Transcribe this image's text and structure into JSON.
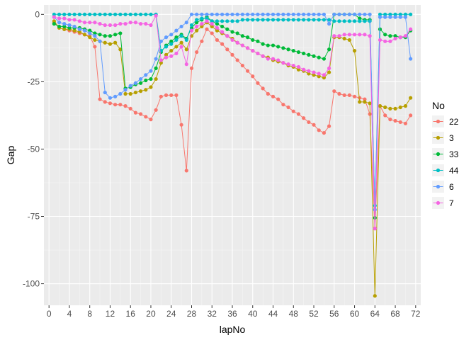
{
  "chart_data": {
    "type": "line",
    "xlabel": "lapNo",
    "ylabel": "Gap",
    "xlim": [
      -1,
      73
    ],
    "ylim": [
      -108,
      3.5
    ],
    "x_ticks": [
      0,
      4,
      8,
      12,
      16,
      20,
      24,
      28,
      32,
      36,
      40,
      44,
      48,
      52,
      56,
      60,
      64,
      68,
      72
    ],
    "x_tick_labels": [
      "0",
      "4",
      "8",
      "12",
      "16",
      "20",
      "24",
      "28",
      "32",
      "36",
      "40",
      "44",
      "48",
      "52",
      "56",
      "60",
      "64",
      "68",
      "72"
    ],
    "y_ticks": [
      0,
      -25,
      -50,
      -75,
      -100
    ],
    "y_tick_labels": [
      "0",
      "-25",
      "-50",
      "-75",
      "-100"
    ],
    "grid": true,
    "panel_background": "#ebebeb",
    "legend": {
      "title": "No",
      "position": "right"
    },
    "series": [
      {
        "name": "22",
        "color": "#f8766d",
        "x": [
          1,
          2,
          3,
          4,
          5,
          6,
          7,
          8,
          9,
          10,
          11,
          12,
          13,
          14,
          15,
          16,
          17,
          18,
          19,
          20,
          21,
          22,
          23,
          24,
          25,
          26,
          27,
          28,
          29,
          30,
          31,
          32,
          33,
          34,
          35,
          36,
          37,
          38,
          39,
          40,
          41,
          42,
          43,
          44,
          45,
          46,
          47,
          48,
          49,
          50,
          51,
          52,
          53,
          54,
          55,
          56,
          57,
          58,
          59,
          60,
          61,
          62,
          63,
          64,
          65,
          66,
          67,
          68,
          69,
          70,
          71
        ],
        "y": [
          -3,
          -5,
          -5.5,
          -6,
          -6.5,
          -7,
          -7.5,
          -8,
          -12,
          -31.5,
          -32.5,
          -33,
          -33.5,
          -33.5,
          -34,
          -35,
          -36.5,
          -37,
          -38,
          -39,
          -35.5,
          -30.5,
          -30,
          -30,
          -30,
          -41,
          -58,
          -20,
          -14,
          -10,
          -5.5,
          -7,
          -9.5,
          -11,
          -13,
          -15,
          -17,
          -19,
          -21,
          -23,
          -25.5,
          -27.5,
          -29.5,
          -30.5,
          -31.5,
          -33.5,
          -34.5,
          -36,
          -37,
          -38.5,
          -40,
          -41,
          -43,
          -44,
          -41.5,
          -28.5,
          -29.5,
          -30,
          -30,
          -30.5,
          -31,
          -31.5,
          -37,
          -79.5,
          -34,
          -37.5,
          -39,
          -39.5,
          -40,
          -40.5,
          -37.5
        ]
      },
      {
        "name": "3",
        "color": "#b79f00",
        "x": [
          1,
          2,
          3,
          4,
          5,
          6,
          7,
          8,
          9,
          10,
          11,
          12,
          13,
          14,
          15,
          16,
          17,
          18,
          19,
          20,
          21,
          22,
          23,
          24,
          25,
          26,
          27,
          28,
          29,
          30,
          31,
          32,
          33,
          34,
          35,
          36,
          37,
          38,
          39,
          40,
          41,
          42,
          43,
          44,
          45,
          46,
          47,
          48,
          49,
          50,
          51,
          52,
          53,
          54,
          55,
          56,
          57,
          58,
          59,
          60,
          61,
          62,
          63,
          64,
          65,
          66,
          67,
          68,
          69,
          70,
          71
        ],
        "y": [
          -2.5,
          -5,
          -5.5,
          -5.5,
          -6,
          -6.5,
          -7.5,
          -8.5,
          -9.5,
          -10,
          -10.5,
          -11,
          -10.5,
          -13,
          -29.5,
          -29.5,
          -29,
          -28.5,
          -28,
          -27,
          -24,
          -18,
          -15,
          -13.5,
          -12,
          -10.5,
          -13,
          -8,
          -6,
          -4.5,
          -3,
          -4.5,
          -6,
          -7,
          -8,
          -9,
          -10.5,
          -11.5,
          -12.5,
          -13.5,
          -14.5,
          -15.5,
          -16,
          -17,
          -17.5,
          -18,
          -19,
          -19.5,
          -20.5,
          -21,
          -22,
          -22.5,
          -23,
          -23.5,
          -21.5,
          -8.5,
          -8.5,
          -9,
          -9.5,
          -13.5,
          -32.5,
          -32.5,
          -33,
          -104.5,
          -34,
          -34.5,
          -35,
          -35,
          -34.5,
          -34,
          -31
        ]
      },
      {
        "name": "33",
        "color": "#00ba38",
        "x": [
          1,
          2,
          3,
          4,
          5,
          6,
          7,
          8,
          9,
          10,
          11,
          12,
          13,
          14,
          15,
          16,
          17,
          18,
          19,
          20,
          21,
          22,
          23,
          24,
          25,
          26,
          27,
          28,
          29,
          30,
          31,
          32,
          33,
          34,
          35,
          36,
          37,
          38,
          39,
          40,
          41,
          42,
          43,
          44,
          45,
          46,
          47,
          48,
          49,
          50,
          51,
          52,
          53,
          54,
          55,
          56,
          57,
          58,
          59,
          60,
          61,
          62,
          63,
          64,
          65,
          66,
          67,
          68,
          69,
          70,
          71
        ],
        "y": [
          -3.5,
          -4.5,
          -4.5,
          -5,
          -5,
          -5,
          -5.5,
          -6,
          -7,
          -7.5,
          -8,
          -8,
          -7.5,
          -7,
          -27.5,
          -27,
          -26,
          -25.5,
          -24.5,
          -24,
          -20,
          -14,
          -11.5,
          -10,
          -8.5,
          -7.5,
          -9,
          -5,
          -3,
          -2,
          -1,
          -2.5,
          -3.5,
          -4.5,
          -5.5,
          -6.5,
          -7,
          -8,
          -8.5,
          -9.5,
          -10,
          -11,
          -11.5,
          -11.5,
          -12,
          -12.5,
          -13,
          -13.5,
          -14,
          -14.5,
          -15,
          -15.5,
          -16,
          -16.5,
          -13,
          0,
          0,
          0,
          0,
          0,
          -1.5,
          -2,
          -2,
          -75.5,
          -5.5,
          -7.5,
          -8,
          -8,
          -8.5,
          -8.5,
          -6
        ]
      },
      {
        "name": "44",
        "color": "#00bfc4",
        "x": [
          1,
          2,
          3,
          4,
          5,
          6,
          7,
          8,
          9,
          10,
          11,
          12,
          13,
          14,
          15,
          16,
          17,
          18,
          19,
          20,
          21,
          22,
          23,
          24,
          25,
          26,
          27,
          28,
          29,
          30,
          31,
          32,
          33,
          34,
          35,
          36,
          37,
          38,
          39,
          40,
          41,
          42,
          43,
          44,
          45,
          46,
          47,
          48,
          49,
          50,
          51,
          52,
          53,
          54,
          55,
          56,
          57,
          58,
          59,
          60,
          61,
          62,
          63,
          64,
          65,
          66,
          67,
          68,
          69,
          70,
          71
        ],
        "y": [
          0,
          0,
          0,
          0,
          0,
          0,
          0,
          0,
          0,
          0,
          0,
          0,
          0,
          0,
          0,
          0,
          0,
          0,
          0,
          0,
          0,
          -13.5,
          -12,
          -11,
          -9.5,
          -8,
          -9.5,
          -4,
          -2,
          -1.5,
          -1.5,
          -2.5,
          -2.5,
          -2.5,
          -2.5,
          -2.5,
          -2.5,
          -2,
          -2,
          -2,
          -2,
          -2,
          -2,
          -2,
          -2,
          -2,
          -2,
          -2,
          -2,
          -2,
          -2,
          -2,
          -2,
          -2,
          -2,
          -2.5,
          -2.5,
          -2.5,
          -2.5,
          -2.5,
          -2.5,
          -2.5,
          -2.5,
          -71,
          0,
          0,
          0,
          0,
          0,
          0,
          0
        ]
      },
      {
        "name": "6",
        "color": "#619cff",
        "x": [
          1,
          2,
          3,
          4,
          5,
          6,
          7,
          8,
          9,
          10,
          11,
          12,
          13,
          14,
          15,
          16,
          17,
          18,
          19,
          20,
          21,
          22,
          23,
          24,
          25,
          26,
          27,
          28,
          29,
          30,
          31,
          32,
          33,
          34,
          35,
          36,
          37,
          38,
          39,
          40,
          41,
          42,
          43,
          44,
          45,
          46,
          47,
          48,
          49,
          50,
          51,
          52,
          53,
          54,
          55,
          56,
          57,
          58,
          59,
          60,
          61,
          62,
          63,
          64,
          65,
          66,
          67,
          68,
          69,
          70,
          71
        ],
        "y": [
          -1,
          -3,
          -3.5,
          -4,
          -4.5,
          -5.5,
          -6,
          -7,
          -8,
          -10,
          -29,
          -31,
          -30.5,
          -29.5,
          -28,
          -26.5,
          -25.5,
          -24,
          -22.5,
          -21,
          -16.5,
          -10,
          -8.5,
          -7.5,
          -6,
          -4.5,
          -3,
          0,
          0,
          0,
          0,
          0,
          0,
          0,
          0,
          0,
          0,
          0,
          0,
          0,
          0,
          0,
          0,
          0,
          0,
          0,
          0,
          0,
          0,
          0,
          0,
          0,
          0,
          0,
          -3.5,
          0,
          0,
          0,
          0,
          0,
          0,
          0,
          0,
          -72.5,
          -1,
          -1,
          -1,
          -1,
          -1,
          -1,
          -16.5
        ]
      },
      {
        "name": "7",
        "color": "#f564e3",
        "x": [
          1,
          2,
          3,
          4,
          5,
          6,
          7,
          8,
          9,
          10,
          11,
          12,
          13,
          14,
          15,
          16,
          17,
          18,
          19,
          20,
          21,
          22,
          23,
          24,
          25,
          26,
          27,
          28,
          29,
          30,
          31,
          32,
          33,
          34,
          35,
          36,
          37,
          38,
          39,
          40,
          41,
          42,
          43,
          44,
          45,
          46,
          47,
          48,
          49,
          50,
          51,
          52,
          53,
          54,
          55,
          56,
          57,
          58,
          59,
          60,
          61,
          62,
          63,
          64,
          65,
          66,
          67,
          68,
          69,
          70,
          71
        ],
        "y": [
          -1,
          -1.5,
          -1.5,
          -2,
          -2,
          -2.5,
          -3,
          -3,
          -3,
          -3.5,
          -4,
          -4,
          -4,
          -3.5,
          -3.5,
          -3,
          -3,
          -3.5,
          -3.5,
          -4,
          -0.5,
          -17,
          -16,
          -15.5,
          -14.5,
          -12,
          -18.5,
          -6,
          -4.5,
          -3.5,
          -2.5,
          -3.5,
          -5,
          -6.5,
          -8,
          -9.5,
          -10.5,
          -11.5,
          -12.5,
          -13.5,
          -14.5,
          -15.5,
          -16.5,
          -16.5,
          -17,
          -18,
          -18.5,
          -19,
          -19.5,
          -20.5,
          -21,
          -21.5,
          -22,
          -22.5,
          -20,
          -8,
          -8,
          -7.5,
          -7.5,
          -7.5,
          -7.5,
          -7.5,
          -8,
          -79.5,
          -9.5,
          -10,
          -10,
          -9,
          -8.5,
          -8,
          -5.5
        ]
      }
    ]
  }
}
